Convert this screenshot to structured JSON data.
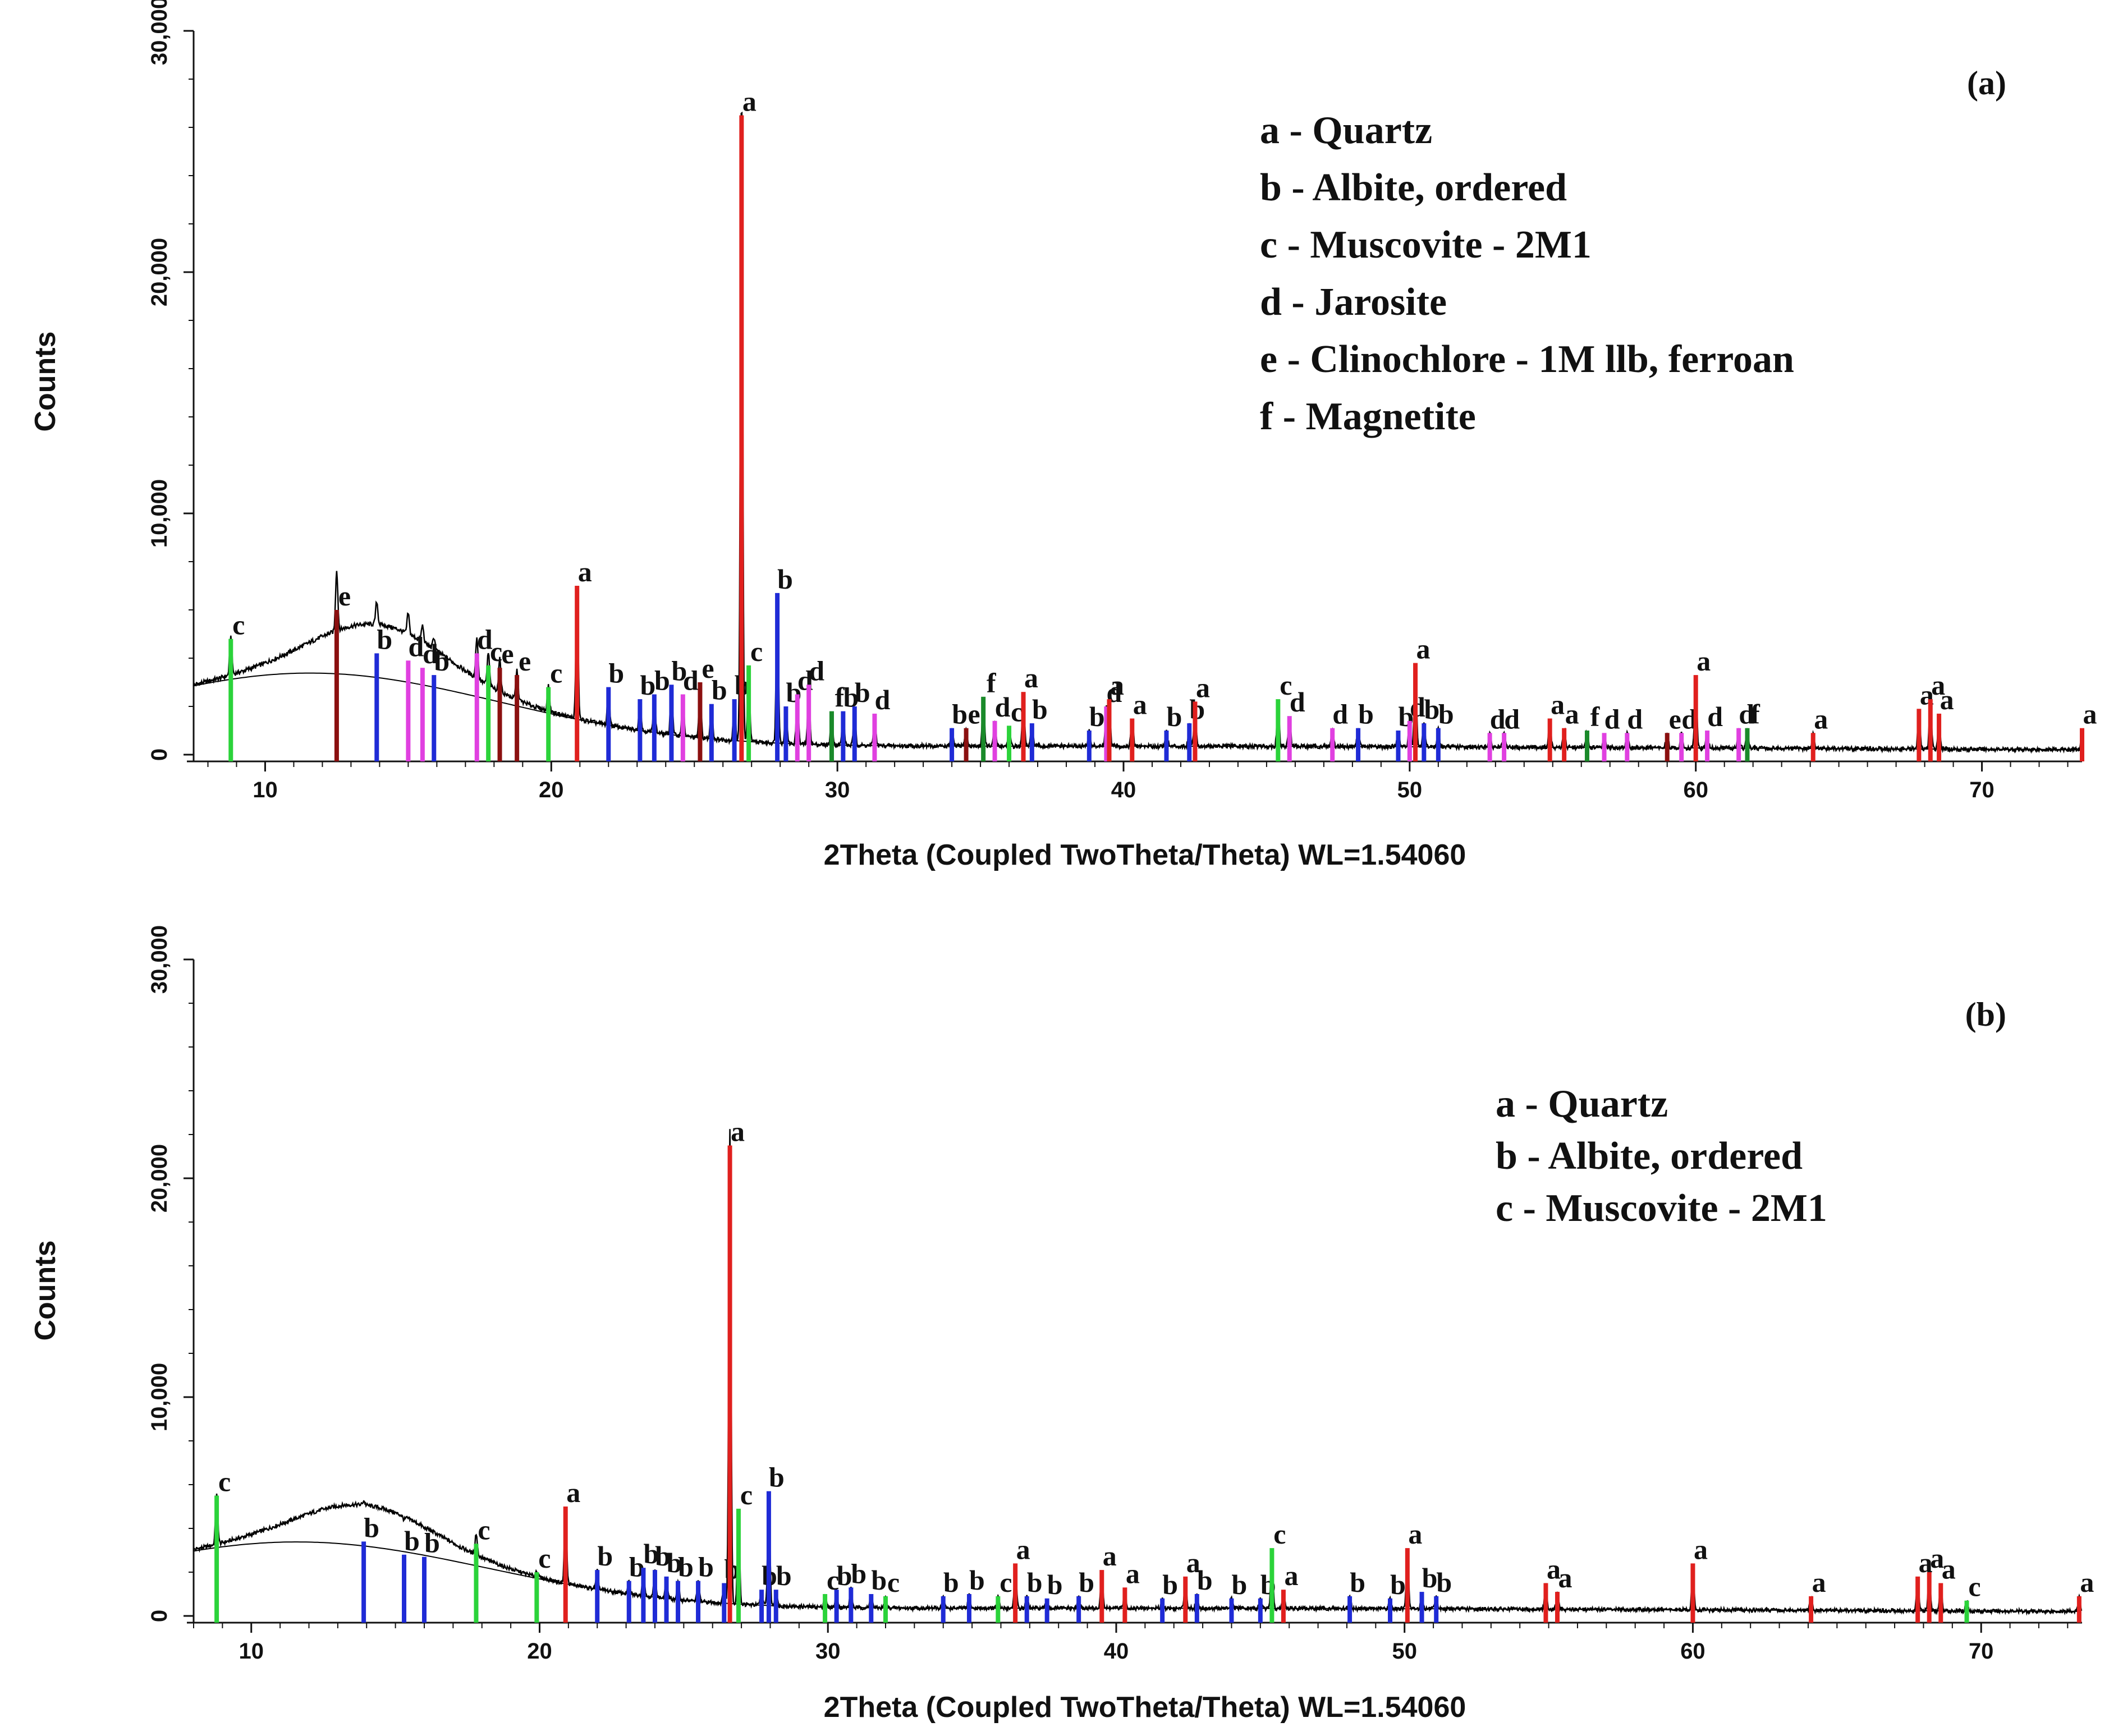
{
  "colors": {
    "axis": "#111111",
    "pattern": "#000000",
    "background_curve": "#000000",
    "a": "#e0201e",
    "b": "#1f2bd6",
    "c": "#2bd33a",
    "d": "#e040e0",
    "e": "#8b1010",
    "f": "#1a8a2a"
  },
  "chart_data": [
    {
      "type": "line",
      "panel": "(a)",
      "xlabel": "2Theta (Coupled TwoTheta/Theta) WL=1.54060",
      "ylabel": "Counts",
      "xlim": [
        7.5,
        73.5
      ],
      "ylim": [
        0,
        30000
      ],
      "xticks": [
        10,
        20,
        30,
        40,
        50,
        60,
        70
      ],
      "xtick_labels": [
        "10",
        "20",
        "30",
        "40",
        "50",
        "60",
        "70"
      ],
      "yticks": [
        0,
        10000,
        20000,
        30000
      ],
      "ytick_labels": [
        "0",
        "10,000",
        "20,000",
        "30,000"
      ],
      "legend": [
        "a - Quartz",
        "b - Albite, ordered",
        "c - Muscovite - 2M1",
        "d - Jarosite",
        "e - Clinochlore - 1M llb, ferroan",
        "f - Magnetite"
      ],
      "legend_position": "top-right",
      "peaks": [
        {
          "x": 8.8,
          "y": 4800,
          "phase": "c"
        },
        {
          "x": 12.5,
          "y": 6000,
          "phase": "e"
        },
        {
          "x": 13.9,
          "y": 4200,
          "phase": "b"
        },
        {
          "x": 15.0,
          "y": 3900,
          "phase": "d"
        },
        {
          "x": 15.5,
          "y": 3600,
          "phase": "d"
        },
        {
          "x": 15.9,
          "y": 3300,
          "phase": "b"
        },
        {
          "x": 17.4,
          "y": 4200,
          "phase": "d"
        },
        {
          "x": 17.8,
          "y": 3700,
          "phase": "c"
        },
        {
          "x": 18.2,
          "y": 3600,
          "phase": "e"
        },
        {
          "x": 18.8,
          "y": 3300,
          "phase": "e"
        },
        {
          "x": 19.9,
          "y": 2800,
          "phase": "c"
        },
        {
          "x": 20.9,
          "y": 7000,
          "phase": "a"
        },
        {
          "x": 22.0,
          "y": 2800,
          "phase": "b"
        },
        {
          "x": 23.1,
          "y": 2300,
          "phase": "b"
        },
        {
          "x": 23.6,
          "y": 2500,
          "phase": "b"
        },
        {
          "x": 24.2,
          "y": 2900,
          "phase": "b"
        },
        {
          "x": 24.6,
          "y": 2500,
          "phase": "d"
        },
        {
          "x": 25.2,
          "y": 3000,
          "phase": "e"
        },
        {
          "x": 25.6,
          "y": 2100,
          "phase": "b"
        },
        {
          "x": 26.4,
          "y": 2300,
          "phase": "b"
        },
        {
          "x": 26.65,
          "y": 26500,
          "phase": "a"
        },
        {
          "x": 26.9,
          "y": 3700,
          "phase": "c"
        },
        {
          "x": 27.9,
          "y": 6700,
          "phase": "b"
        },
        {
          "x": 28.2,
          "y": 2000,
          "phase": "b"
        },
        {
          "x": 28.6,
          "y": 2500,
          "phase": "d"
        },
        {
          "x": 29.0,
          "y": 2900,
          "phase": "d"
        },
        {
          "x": 29.8,
          "y": 1800,
          "phase": "f"
        },
        {
          "x": 30.2,
          "y": 1800,
          "phase": "b"
        },
        {
          "x": 30.6,
          "y": 2000,
          "phase": "b"
        },
        {
          "x": 31.3,
          "y": 1700,
          "phase": "d"
        },
        {
          "x": 34.0,
          "y": 1100,
          "phase": "b"
        },
        {
          "x": 34.5,
          "y": 1100,
          "phase": "e"
        },
        {
          "x": 35.1,
          "y": 2400,
          "phase": "f"
        },
        {
          "x": 35.5,
          "y": 1400,
          "phase": "d"
        },
        {
          "x": 36.0,
          "y": 1200,
          "phase": "c"
        },
        {
          "x": 36.5,
          "y": 2600,
          "phase": "a"
        },
        {
          "x": 36.8,
          "y": 1300,
          "phase": "b"
        },
        {
          "x": 38.8,
          "y": 1000,
          "phase": "b"
        },
        {
          "x": 39.4,
          "y": 2000,
          "phase": "d"
        },
        {
          "x": 39.5,
          "y": 2300,
          "phase": "a"
        },
        {
          "x": 40.3,
          "y": 1500,
          "phase": "a"
        },
        {
          "x": 41.5,
          "y": 1000,
          "phase": "b"
        },
        {
          "x": 42.3,
          "y": 1300,
          "phase": "b"
        },
        {
          "x": 42.5,
          "y": 2200,
          "phase": "a"
        },
        {
          "x": 45.4,
          "y": 2300,
          "phase": "c"
        },
        {
          "x": 45.8,
          "y": 1600,
          "phase": "d"
        },
        {
          "x": 47.3,
          "y": 1100,
          "phase": "d"
        },
        {
          "x": 48.2,
          "y": 1100,
          "phase": "b"
        },
        {
          "x": 49.6,
          "y": 1000,
          "phase": "b"
        },
        {
          "x": 50.0,
          "y": 1400,
          "phase": "d"
        },
        {
          "x": 50.2,
          "y": 3800,
          "phase": "a"
        },
        {
          "x": 50.5,
          "y": 1300,
          "phase": "b"
        },
        {
          "x": 51.0,
          "y": 1100,
          "phase": "b"
        },
        {
          "x": 52.8,
          "y": 900,
          "phase": "d"
        },
        {
          "x": 53.3,
          "y": 900,
          "phase": "d"
        },
        {
          "x": 54.9,
          "y": 1500,
          "phase": "a"
        },
        {
          "x": 55.4,
          "y": 1100,
          "phase": "a"
        },
        {
          "x": 56.2,
          "y": 1000,
          "phase": "f"
        },
        {
          "x": 56.8,
          "y": 900,
          "phase": "d"
        },
        {
          "x": 57.6,
          "y": 900,
          "phase": "d"
        },
        {
          "x": 59.0,
          "y": 900,
          "phase": "e"
        },
        {
          "x": 59.5,
          "y": 900,
          "phase": "d"
        },
        {
          "x": 60.0,
          "y": 3300,
          "phase": "a"
        },
        {
          "x": 60.4,
          "y": 1000,
          "phase": "d"
        },
        {
          "x": 61.5,
          "y": 1100,
          "phase": "d"
        },
        {
          "x": 61.8,
          "y": 1100,
          "phase": "f"
        },
        {
          "x": 64.1,
          "y": 900,
          "phase": "a"
        },
        {
          "x": 67.8,
          "y": 1900,
          "phase": "a"
        },
        {
          "x": 68.2,
          "y": 2300,
          "phase": "a"
        },
        {
          "x": 68.5,
          "y": 1700,
          "phase": "a"
        },
        {
          "x": 73.5,
          "y": 1100,
          "phase": "a"
        }
      ]
    },
    {
      "type": "line",
      "panel": "(b)",
      "xlabel": "2Theta (Coupled TwoTheta/Theta) WL=1.54060",
      "ylabel": "Counts",
      "xlim": [
        8,
        73.5
      ],
      "ylim": [
        0,
        30000
      ],
      "xticks": [
        10,
        20,
        30,
        40,
        50,
        60,
        70
      ],
      "xtick_labels": [
        "10",
        "20",
        "30",
        "40",
        "50",
        "60",
        "70"
      ],
      "yticks": [
        0,
        10000,
        20000,
        30000
      ],
      "ytick_labels": [
        "0",
        "10,000",
        "20,000",
        "30,000"
      ],
      "legend": [
        "a - Quartz",
        "b - Albite, ordered",
        "c - Muscovite - 2M1"
      ],
      "legend_position": "top-right",
      "peaks": [
        {
          "x": 8.8,
          "y": 5500,
          "phase": "c"
        },
        {
          "x": 13.9,
          "y": 3400,
          "phase": "b"
        },
        {
          "x": 15.3,
          "y": 2800,
          "phase": "b"
        },
        {
          "x": 16.0,
          "y": 2700,
          "phase": "b"
        },
        {
          "x": 17.8,
          "y": 3300,
          "phase": "c"
        },
        {
          "x": 19.9,
          "y": 2000,
          "phase": "c"
        },
        {
          "x": 20.9,
          "y": 5000,
          "phase": "a"
        },
        {
          "x": 22.0,
          "y": 2100,
          "phase": "b"
        },
        {
          "x": 23.1,
          "y": 1600,
          "phase": "b"
        },
        {
          "x": 23.6,
          "y": 2200,
          "phase": "b"
        },
        {
          "x": 24.0,
          "y": 2100,
          "phase": "b"
        },
        {
          "x": 24.4,
          "y": 1800,
          "phase": "b"
        },
        {
          "x": 24.8,
          "y": 1600,
          "phase": "b"
        },
        {
          "x": 25.5,
          "y": 1600,
          "phase": "b"
        },
        {
          "x": 26.4,
          "y": 1500,
          "phase": "b"
        },
        {
          "x": 26.6,
          "y": 21500,
          "phase": "a"
        },
        {
          "x": 26.9,
          "y": 4900,
          "phase": "c"
        },
        {
          "x": 27.7,
          "y": 1200,
          "phase": "b"
        },
        {
          "x": 27.95,
          "y": 5700,
          "phase": "b"
        },
        {
          "x": 28.2,
          "y": 1200,
          "phase": "b"
        },
        {
          "x": 29.9,
          "y": 1000,
          "phase": "c"
        },
        {
          "x": 30.3,
          "y": 1200,
          "phase": "b"
        },
        {
          "x": 30.8,
          "y": 1300,
          "phase": "b"
        },
        {
          "x": 31.5,
          "y": 1000,
          "phase": "b"
        },
        {
          "x": 32.0,
          "y": 900,
          "phase": "c"
        },
        {
          "x": 34.0,
          "y": 900,
          "phase": "b"
        },
        {
          "x": 34.9,
          "y": 1000,
          "phase": "b"
        },
        {
          "x": 35.9,
          "y": 900,
          "phase": "c"
        },
        {
          "x": 36.5,
          "y": 2400,
          "phase": "a"
        },
        {
          "x": 36.9,
          "y": 900,
          "phase": "b"
        },
        {
          "x": 37.6,
          "y": 800,
          "phase": "b"
        },
        {
          "x": 38.7,
          "y": 900,
          "phase": "b"
        },
        {
          "x": 39.5,
          "y": 2100,
          "phase": "a"
        },
        {
          "x": 40.3,
          "y": 1300,
          "phase": "a"
        },
        {
          "x": 41.6,
          "y": 800,
          "phase": "b"
        },
        {
          "x": 42.4,
          "y": 1800,
          "phase": "a"
        },
        {
          "x": 42.8,
          "y": 1000,
          "phase": "b"
        },
        {
          "x": 44.0,
          "y": 800,
          "phase": "b"
        },
        {
          "x": 45.0,
          "y": 800,
          "phase": "b"
        },
        {
          "x": 45.4,
          "y": 3100,
          "phase": "c"
        },
        {
          "x": 45.8,
          "y": 1200,
          "phase": "a"
        },
        {
          "x": 48.1,
          "y": 900,
          "phase": "b"
        },
        {
          "x": 49.5,
          "y": 800,
          "phase": "b"
        },
        {
          "x": 50.1,
          "y": 3100,
          "phase": "a"
        },
        {
          "x": 50.6,
          "y": 1100,
          "phase": "b"
        },
        {
          "x": 51.1,
          "y": 900,
          "phase": "b"
        },
        {
          "x": 54.9,
          "y": 1500,
          "phase": "a"
        },
        {
          "x": 55.3,
          "y": 1100,
          "phase": "a"
        },
        {
          "x": 60.0,
          "y": 2400,
          "phase": "a"
        },
        {
          "x": 64.1,
          "y": 900,
          "phase": "a"
        },
        {
          "x": 67.8,
          "y": 1800,
          "phase": "a"
        },
        {
          "x": 68.2,
          "y": 2000,
          "phase": "a"
        },
        {
          "x": 68.6,
          "y": 1500,
          "phase": "a"
        },
        {
          "x": 69.5,
          "y": 700,
          "phase": "c"
        },
        {
          "x": 73.4,
          "y": 900,
          "phase": "a"
        }
      ]
    }
  ]
}
